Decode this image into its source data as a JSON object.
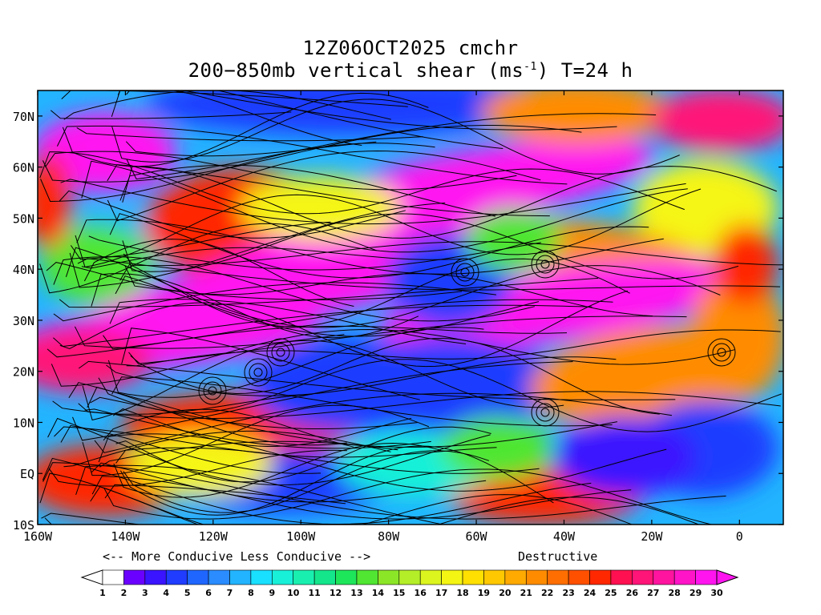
{
  "title": {
    "line1": "12Z06OCT2025 cmchr",
    "line2_prefix": "200−850mb vertical shear (ms",
    "line2_sup": "-1",
    "line2_suffix": ") T=24 h"
  },
  "map": {
    "lat_labels": [
      "70N",
      "60N",
      "50N",
      "40N",
      "30N",
      "20N",
      "10N",
      "EQ",
      "10S"
    ],
    "lat_values": [
      70,
      60,
      50,
      40,
      30,
      20,
      10,
      0,
      -10
    ],
    "lon_labels": [
      "160W",
      "140W",
      "120W",
      "100W",
      "80W",
      "60W",
      "40W",
      "20W",
      "0"
    ],
    "lon_values": [
      -160,
      -140,
      -120,
      -100,
      -80,
      -60,
      -40,
      -20,
      0
    ],
    "lon_range": [
      -160,
      10
    ],
    "lat_range": [
      -10,
      75
    ]
  },
  "legend": {
    "left_note": "<-- More Conducive  Less Conducive -->",
    "right_note": "Destructive",
    "ticks": [
      "1",
      "2",
      "3",
      "4",
      "5",
      "6",
      "7",
      "8",
      "9",
      "10",
      "11",
      "12",
      "13",
      "14",
      "15",
      "16",
      "17",
      "18",
      "19",
      "20",
      "21",
      "22",
      "23",
      "24",
      "25",
      "26",
      "27",
      "28",
      "29",
      "30"
    ],
    "colors": [
      "#ffffff",
      "#6a00ff",
      "#3a14ff",
      "#1f3cff",
      "#1f66ff",
      "#2a8cff",
      "#22b4ff",
      "#19e0ff",
      "#19f0d8",
      "#19f0b0",
      "#14e68c",
      "#1ee65a",
      "#50e632",
      "#8ce628",
      "#b4ee28",
      "#dcf51e",
      "#f5f514",
      "#ffe000",
      "#ffc800",
      "#ffaa00",
      "#ff8c00",
      "#ff6e00",
      "#ff5000",
      "#ff2800",
      "#ff1050",
      "#ff1478",
      "#ff14a0",
      "#ff14c8",
      "#ff14f0"
    ]
  }
}
